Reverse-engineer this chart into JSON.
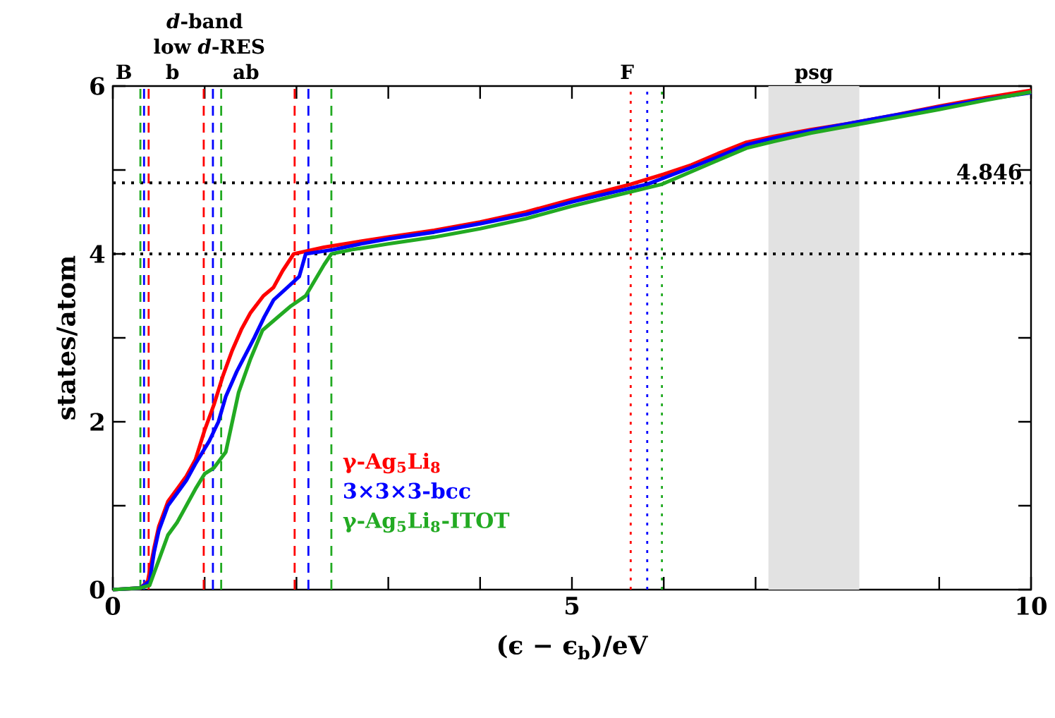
{
  "chart_data": {
    "type": "line",
    "xlabel": "(ϵ − ϵ$_{b}$)/eV",
    "ylabel": "states/atom",
    "xlim": [
      0,
      10
    ],
    "ylim": [
      0,
      6
    ],
    "xticks": [
      0,
      {
        "value": 1,
        "label": null
      },
      {
        "value": 2,
        "label": null
      },
      {
        "value": 3,
        "label": null
      },
      {
        "value": 4,
        "label": null
      },
      5,
      {
        "value": 6,
        "label": null
      },
      {
        "value": 7,
        "label": null
      },
      {
        "value": 8,
        "label": null
      },
      {
        "value": 9,
        "label": null
      },
      10
    ],
    "yticks": [
      0,
      {
        "value": 1,
        "label": null
      },
      2,
      {
        "value": 3,
        "label": null
      },
      4,
      {
        "value": 5,
        "label": null
      },
      6
    ],
    "line_style": "solid",
    "series": [
      {
        "name": "γ-Ag$_{5}$Li$_{8}$",
        "color": "#ff0000",
        "x": [
          0,
          0.3,
          0.38,
          0.45,
          0.5,
          0.6,
          0.7,
          0.8,
          0.9,
          1.0,
          1.1,
          1.2,
          1.3,
          1.4,
          1.5,
          1.64,
          1.75,
          1.85,
          1.97,
          2.3,
          2.7,
          3,
          3.5,
          4,
          4.5,
          5,
          5.64,
          6,
          6.3,
          6.6,
          6.9,
          7.2,
          7.6,
          8,
          8.5,
          9,
          9.5,
          10
        ],
        "values": [
          0,
          0.02,
          0.1,
          0.5,
          0.75,
          1.05,
          1.2,
          1.35,
          1.55,
          1.9,
          2.2,
          2.55,
          2.85,
          3.1,
          3.3,
          3.5,
          3.6,
          3.8,
          4.0,
          4.08,
          4.15,
          4.2,
          4.28,
          4.38,
          4.5,
          4.65,
          4.83,
          4.95,
          5.06,
          5.2,
          5.33,
          5.4,
          5.48,
          5.55,
          5.65,
          5.76,
          5.86,
          5.95
        ]
      },
      {
        "name": "3×3×3-bcc",
        "color": "#0000ff",
        "x": [
          0,
          0.3,
          0.4,
          0.45,
          0.5,
          0.6,
          0.7,
          0.8,
          0.9,
          1.05,
          1.15,
          1.23,
          1.35,
          1.54,
          1.65,
          1.75,
          1.9,
          2.03,
          2.1,
          2.4,
          2.7,
          3,
          3.5,
          4,
          4.5,
          5,
          5.82,
          6.3,
          6.6,
          6.9,
          7.2,
          7.6,
          8,
          8.5,
          9,
          9.5,
          10
        ],
        "values": [
          0,
          0.02,
          0.1,
          0.45,
          0.7,
          1.0,
          1.15,
          1.3,
          1.5,
          1.77,
          2.0,
          2.3,
          2.6,
          3.0,
          3.25,
          3.45,
          3.6,
          3.73,
          4.0,
          4.05,
          4.12,
          4.18,
          4.26,
          4.36,
          4.47,
          4.62,
          4.83,
          5.03,
          5.16,
          5.3,
          5.38,
          5.47,
          5.55,
          5.65,
          5.75,
          5.84,
          5.92
        ]
      },
      {
        "name": "γ-Ag$_{5}$Li$_{8}$-ITOT",
        "color": "#22aa22",
        "x": [
          0,
          0.3,
          0.4,
          0.45,
          0.5,
          0.6,
          0.7,
          0.8,
          0.9,
          1.0,
          1.1,
          1.23,
          1.37,
          1.5,
          1.63,
          1.8,
          1.94,
          2.1,
          2.3,
          2.38,
          2.6,
          3,
          3.5,
          4,
          4.5,
          5,
          5.98,
          6.3,
          6.6,
          6.9,
          7.2,
          7.6,
          8,
          8.5,
          9,
          9.5,
          10
        ],
        "values": [
          0,
          0.02,
          0.05,
          0.2,
          0.35,
          0.65,
          0.8,
          1.0,
          1.2,
          1.38,
          1.45,
          1.64,
          2.35,
          2.75,
          3.09,
          3.25,
          3.38,
          3.5,
          3.87,
          4.0,
          4.05,
          4.12,
          4.2,
          4.3,
          4.42,
          4.57,
          4.83,
          4.98,
          5.12,
          5.26,
          5.34,
          5.44,
          5.52,
          5.62,
          5.72,
          5.83,
          5.93
        ]
      }
    ],
    "bands": [
      {
        "axis": "x",
        "from": 7.14,
        "to": 8.13,
        "label": "psg",
        "color": "#e2e2e2"
      }
    ],
    "ref_lines": [
      {
        "axis": "y",
        "value": 4,
        "color": "#000000",
        "line_style": "dotted"
      },
      {
        "axis": "y",
        "value": 4.846,
        "label": "4.846",
        "color": "#000000",
        "line_style": "dotted"
      },
      {
        "axis": "x",
        "value": 0.39,
        "color": "#ff0000",
        "line_style": "dashed"
      },
      {
        "axis": "x",
        "value": 0.34,
        "color": "#0000ff",
        "line_style": "dashed"
      },
      {
        "axis": "x",
        "value": 0.3,
        "color": "#22aa22",
        "line_style": "dashed"
      },
      {
        "axis": "x",
        "value": 0.99,
        "color": "#ff0000",
        "line_style": "dashed"
      },
      {
        "axis": "x",
        "value": 1.09,
        "color": "#0000ff",
        "line_style": "dashed"
      },
      {
        "axis": "x",
        "value": 1.18,
        "color": "#22aa22",
        "line_style": "dashed"
      },
      {
        "axis": "x",
        "value": 1.98,
        "color": "#ff0000",
        "line_style": "dashed"
      },
      {
        "axis": "x",
        "value": 2.13,
        "color": "#0000ff",
        "line_style": "dashed"
      },
      {
        "axis": "x",
        "value": 2.38,
        "color": "#22aa22",
        "line_style": "dashed"
      },
      {
        "axis": "x",
        "value": 5.64,
        "color": "#ff0000",
        "line_style": "dotted"
      },
      {
        "axis": "x",
        "value": 5.82,
        "color": "#0000ff",
        "line_style": "dotted"
      },
      {
        "axis": "x",
        "value": 5.98,
        "color": "#22aa22",
        "line_style": "dotted"
      }
    ],
    "annotations": [
      "B",
      "b",
      "ab",
      "low *d*-RES",
      "*d*-band",
      "F"
    ]
  }
}
